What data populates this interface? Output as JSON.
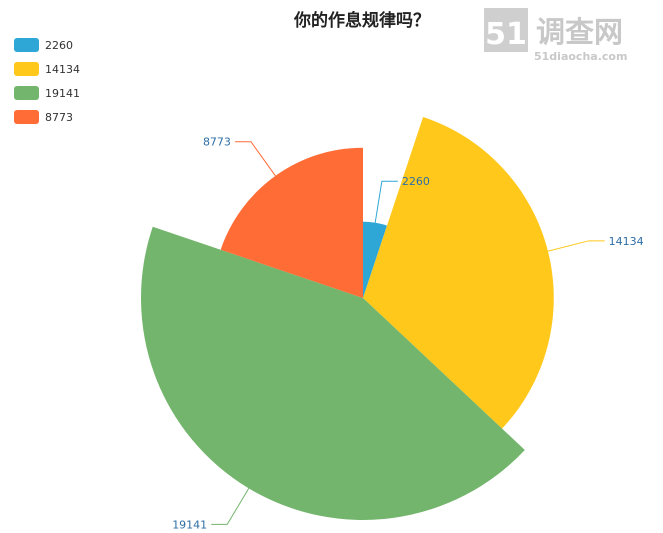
{
  "chart_data": {
    "type": "pie",
    "subtype": "rose",
    "title": "你的作息规律吗？",
    "categories": [
      "2260",
      "14134",
      "19141",
      "8773"
    ],
    "values": [
      2260,
      14134,
      19141,
      8773
    ],
    "colors": [
      "#2ea7d6",
      "#ffc81a",
      "#73b56c",
      "#ff6c35"
    ],
    "legend_position": "top-left"
  },
  "watermark": {
    "logo_number": "51",
    "logo_text": "调查网",
    "url": "51diaocha.com"
  }
}
